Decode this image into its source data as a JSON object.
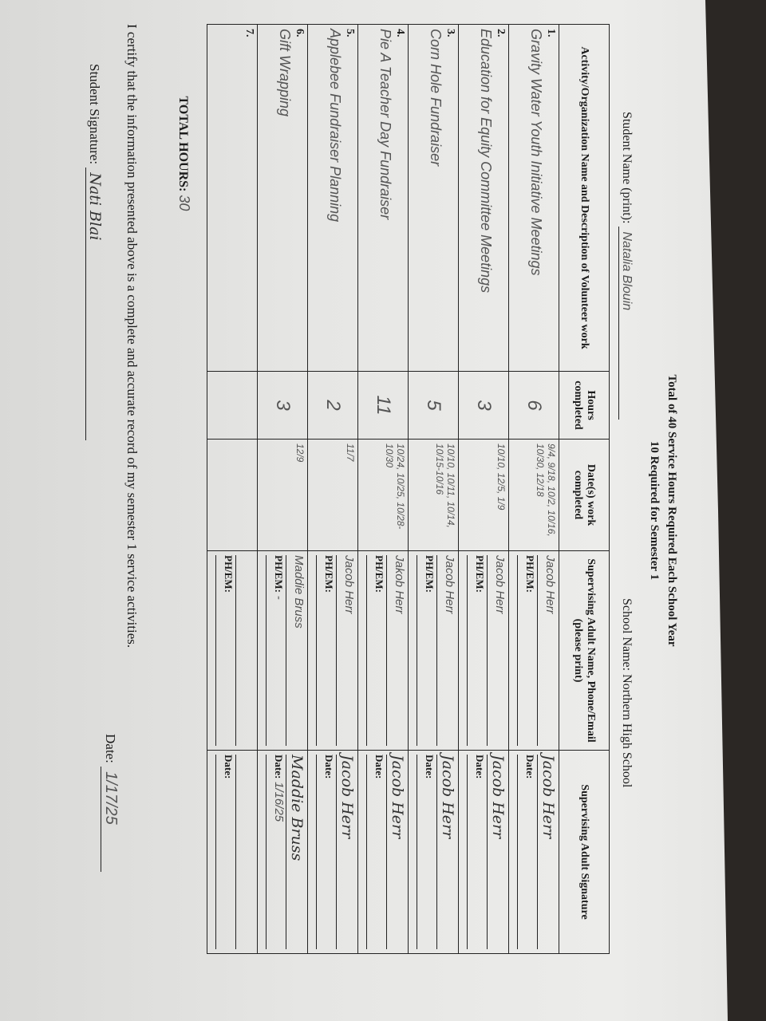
{
  "header": {
    "title_line1": "Total of 40 Service Hours Required Each School Year",
    "title_line2": "10 Required for Semester 1",
    "student_name_label": "Student Name (print):",
    "student_name": "Natalia Blouin",
    "school_name_label": "School Name:",
    "school_name": "Northern High School"
  },
  "table": {
    "columns": [
      "Activity/Organization Name and Description of Volunteer work",
      "Hours completed",
      "Date(s) work completed",
      "Supervising Adult Name, Phone/Email (please print)",
      "Supervising Adult Signature"
    ],
    "phem_label": "PH/EM:",
    "date_label": "Date:",
    "rows": [
      {
        "num": "1.",
        "activity": "Gravity Water Youth Initiative Meetings",
        "hours": "6",
        "dates": "9/4, 9/18, 10/2, 10/16, 10/30, 12/18",
        "supervisor": "Jacob Herr",
        "phem": "",
        "signature": "Jacob Herr",
        "sig_date": ""
      },
      {
        "num": "2.",
        "activity": "Education for Equity Committee Meetings",
        "hours": "3",
        "dates": "10/10, 12/5, 1/9",
        "supervisor": "Jacob Herr",
        "phem": "",
        "signature": "Jacob Herr",
        "sig_date": ""
      },
      {
        "num": "3.",
        "activity": "Corn Hole Fundraiser",
        "hours": "5",
        "dates": "10/10, 10/11, 10/14, 10/15-10/16",
        "supervisor": "Jacob Herr",
        "phem": "",
        "signature": "Jacob Herr",
        "sig_date": ""
      },
      {
        "num": "4.",
        "activity": "Pie A Teacher Day Fundraiser",
        "hours": "11",
        "dates": "10/24, 10/25, 10/28-10/30",
        "supervisor": "Jakob Herr",
        "phem": "",
        "signature": "Jacob Herr",
        "sig_date": ""
      },
      {
        "num": "5.",
        "activity": "Applebee Fundraiser Planning",
        "hours": "2",
        "dates": "11/7",
        "supervisor": "Jacob Herr",
        "phem": "",
        "signature": "Jacob Herr",
        "sig_date": ""
      },
      {
        "num": "6.",
        "activity": "Gift Wrapping",
        "hours": "3",
        "dates": "12/9",
        "supervisor": "Maddie Bruss",
        "phem": "-",
        "signature": "Maddie Bruss",
        "sig_date": "1/16/25"
      },
      {
        "num": "7.",
        "activity": "",
        "hours": "",
        "dates": "",
        "supervisor": "",
        "phem": "",
        "signature": "",
        "sig_date": ""
      }
    ],
    "total_label": "TOTAL HOURS:",
    "total_value": "30"
  },
  "footer": {
    "certify_text": "I certify that the information presented above is a complete and accurate record of my semester 1 service activities.",
    "student_signature_label": "Student Signature:",
    "student_signature": "Nati Blai",
    "date_label": "Date:",
    "date_value": "1/17/25"
  }
}
